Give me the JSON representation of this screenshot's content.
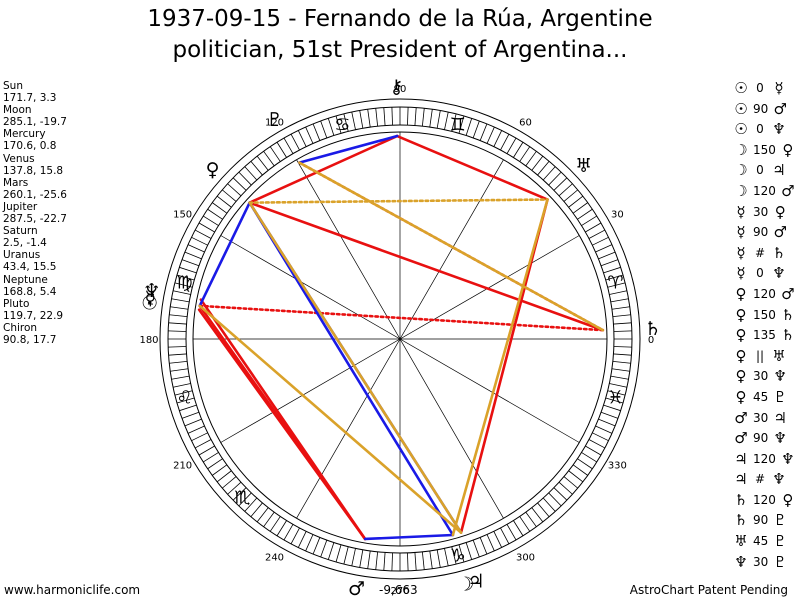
{
  "title": {
    "line1": "1937-09-15 - Fernando de la Rúa, Argentine",
    "line2": "politician, 51st President of Argentina..."
  },
  "positions": [
    {
      "name": "Sun",
      "coords": "171.7, 3.3"
    },
    {
      "name": "Moon",
      "coords": "285.1, -19.7"
    },
    {
      "name": "Mercury",
      "coords": "170.6, 0.8"
    },
    {
      "name": "Venus",
      "coords": "137.8, 15.8"
    },
    {
      "name": "Mars",
      "coords": "260.1, -25.6"
    },
    {
      "name": "Jupiter",
      "coords": "287.5, -22.7"
    },
    {
      "name": "Saturn",
      "coords": "2.5, -1.4"
    },
    {
      "name": "Uranus",
      "coords": "43.4, 15.5"
    },
    {
      "name": "Neptune",
      "coords": "168.8, 5.4"
    },
    {
      "name": "Pluto",
      "coords": "119.7, 22.9"
    },
    {
      "name": "Chiron",
      "coords": "90.8, 17.7"
    }
  ],
  "aspects": [
    {
      "p1": "☉",
      "value": "0",
      "p2": "☿"
    },
    {
      "p1": "☉",
      "value": "90",
      "p2": "♂"
    },
    {
      "p1": "☉",
      "value": "0",
      "p2": "♆"
    },
    {
      "p1": "☽",
      "value": "150",
      "p2": "♀"
    },
    {
      "p1": "☽",
      "value": "0",
      "p2": "♃"
    },
    {
      "p1": "☽",
      "value": "120",
      "p2": "♂"
    },
    {
      "p1": "☿",
      "value": "30",
      "p2": "♀"
    },
    {
      "p1": "☿",
      "value": "90",
      "p2": "♂"
    },
    {
      "p1": "☿",
      "value": "#",
      "p2": "♄"
    },
    {
      "p1": "☿",
      "value": "0",
      "p2": "♆"
    },
    {
      "p1": "♀",
      "value": "120",
      "p2": "♂"
    },
    {
      "p1": "♀",
      "value": "150",
      "p2": "♄"
    },
    {
      "p1": "♀",
      "value": "135",
      "p2": "♄"
    },
    {
      "p1": "♀",
      "value": "||",
      "p2": "♅"
    },
    {
      "p1": "♀",
      "value": "30",
      "p2": "♆"
    },
    {
      "p1": "♀",
      "value": "45",
      "p2": "♇"
    },
    {
      "p1": "♂",
      "value": "30",
      "p2": "♃"
    },
    {
      "p1": "♂",
      "value": "90",
      "p2": "♆"
    },
    {
      "p1": "♃",
      "value": "120",
      "p2": "♆"
    },
    {
      "p1": "♃",
      "value": "#",
      "p2": "♆"
    },
    {
      "p1": "♄",
      "value": "120",
      "p2": "♀"
    },
    {
      "p1": "♄",
      "value": "90",
      "p2": "♇"
    },
    {
      "p1": "♅",
      "value": "45",
      "p2": "♇"
    },
    {
      "p1": "♆",
      "value": "30",
      "p2": "♇"
    }
  ],
  "chart_data": {
    "type": "astrological wheel",
    "longitudes": {
      "Sun": 171.7,
      "Moon": 285.1,
      "Mercury": 170.6,
      "Venus": 137.8,
      "Mars": 260.1,
      "Jupiter": 287.5,
      "Saturn": 2.5,
      "Uranus": 43.4,
      "Neptune": 168.8,
      "Pluto": 119.7,
      "Chiron": 90.8
    },
    "planet_glyphs": [
      {
        "name": "Sun",
        "glyph": "☉"
      },
      {
        "name": "Moon",
        "glyph": "☽"
      },
      {
        "name": "Mercury",
        "glyph": "☿"
      },
      {
        "name": "Venus",
        "glyph": "♀"
      },
      {
        "name": "Mars",
        "glyph": "♂"
      },
      {
        "name": "Jupiter",
        "glyph": "♃"
      },
      {
        "name": "Saturn",
        "glyph": "♄"
      },
      {
        "name": "Uranus",
        "glyph": "♅"
      },
      {
        "name": "Neptune",
        "glyph": "♆"
      },
      {
        "name": "Pluto",
        "glyph": "♇"
      },
      {
        "name": "Chiron",
        "glyph": "⚷"
      }
    ],
    "degree_labels": [
      "0",
      "30",
      "60",
      "90",
      "120",
      "150",
      "180",
      "210",
      "240",
      "270",
      "300",
      "330"
    ],
    "zodiac_signs": [
      {
        "glyph": "♈",
        "longitude": 15
      },
      {
        "glyph": "♊",
        "longitude": 75
      },
      {
        "glyph": "♋",
        "longitude": 105
      },
      {
        "glyph": "♍",
        "longitude": 165
      },
      {
        "glyph": "♌",
        "longitude": 195
      },
      {
        "glyph": "♏",
        "longitude": 225
      },
      {
        "glyph": "♑",
        "longitude": 285
      },
      {
        "glyph": "♓",
        "longitude": 345
      }
    ],
    "aspect_lines": [
      {
        "from": "Sun",
        "to": "Mars",
        "color": "red",
        "style": "solid"
      },
      {
        "from": "Mercury",
        "to": "Mars",
        "color": "red",
        "style": "solid"
      },
      {
        "from": "Neptune",
        "to": "Mars",
        "color": "red",
        "style": "solid"
      },
      {
        "from": "Venus",
        "to": "Saturn",
        "color": "red",
        "style": "solid"
      },
      {
        "from": "Venus",
        "to": "Chiron",
        "color": "red",
        "style": "solid"
      },
      {
        "from": "Chiron",
        "to": "Uranus",
        "color": "red",
        "style": "solid"
      },
      {
        "from": "Uranus",
        "to": "Jupiter",
        "color": "red",
        "style": "solid"
      },
      {
        "from": "Pluto",
        "to": "Saturn",
        "color": "red",
        "style": "dotted"
      },
      {
        "from": "Mercury",
        "to": "Saturn",
        "color": "red",
        "style": "dotted"
      },
      {
        "from": "Moon",
        "to": "Venus",
        "color": "blue",
        "style": "solid"
      },
      {
        "from": "Jupiter",
        "to": "Venus",
        "color": "blue",
        "style": "solid"
      },
      {
        "from": "Mars",
        "to": "Moon",
        "color": "blue",
        "style": "solid"
      },
      {
        "from": "Venus",
        "to": "Mercury",
        "color": "blue",
        "style": "solid"
      },
      {
        "from": "Pluto",
        "to": "Chiron",
        "color": "blue",
        "style": "solid"
      },
      {
        "from": "Moon",
        "to": "Uranus",
        "color": "gold",
        "style": "solid"
      },
      {
        "from": "Jupiter",
        "to": "Venus",
        "color": "gold",
        "style": "solid"
      },
      {
        "from": "Pluto",
        "to": "Saturn",
        "color": "gold",
        "style": "solid"
      },
      {
        "from": "Mercury",
        "to": "Jupiter",
        "color": "gold",
        "style": "solid"
      },
      {
        "from": "Venus",
        "to": "Uranus",
        "color": "gold",
        "style": "dotted"
      }
    ]
  },
  "center_value": "-9,663",
  "footer": {
    "left": "www.harmoniclife.com",
    "right": "AstroChart Patent Pending"
  },
  "colors": {
    "red": "#e81010",
    "blue": "#1a1ae6",
    "gold": "#daa22a"
  }
}
